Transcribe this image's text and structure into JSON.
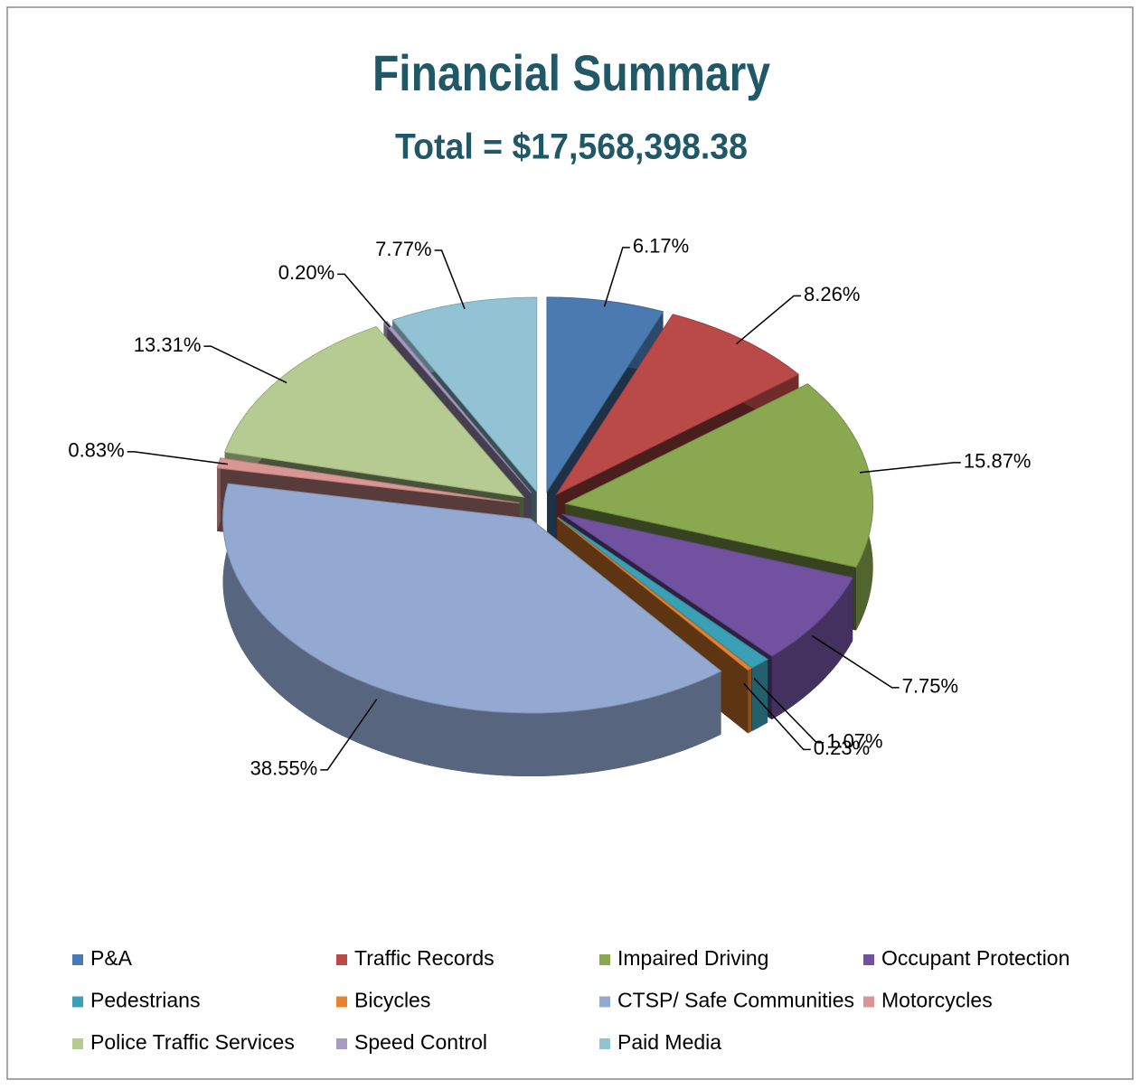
{
  "chart_data": {
    "type": "pie",
    "title": "Financial Summary",
    "subtitle": "Total = $17,568,398.38",
    "categories": [
      "P&A",
      "Traffic Records",
      "Impaired Driving",
      "Occupant  Protection",
      "Pedestrians",
      "Bicycles",
      "CTSP/ Safe Communities",
      "Motorcycles",
      "Police Traffic Services",
      "Speed Control",
      "Paid Media"
    ],
    "values": [
      6.17,
      8.26,
      15.87,
      7.75,
      1.07,
      0.23,
      38.55,
      0.83,
      13.31,
      0.2,
      7.77
    ],
    "value_labels": [
      "6.17%",
      "8.26%",
      "15.87%",
      "7.75%",
      "1.07%",
      "0.23%",
      "38.55%",
      "0.83%",
      "13.31%",
      "0.20%",
      "7.77%"
    ],
    "colors": [
      "#4a7ab0",
      "#b94a48",
      "#8aa84f",
      "#7252a0",
      "#3aa0b5",
      "#e8842f",
      "#93a9d2",
      "#d99694",
      "#b5cb91",
      "#a99bc4",
      "#92c3d5"
    ],
    "legend": "bottom"
  }
}
